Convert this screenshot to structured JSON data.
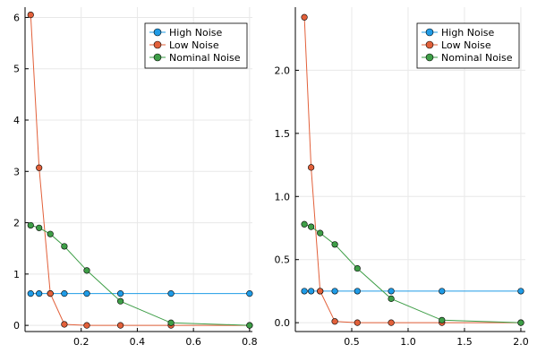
{
  "chart_data": [
    {
      "type": "line",
      "title": "",
      "xlabel": "",
      "ylabel": "",
      "xlim": [
        0.0,
        0.81
      ],
      "ylim": [
        -0.12,
        6.2
      ],
      "x_ticks": [
        0.2,
        0.4,
        0.6,
        0.8
      ],
      "x_tick_labels": [
        "0.2",
        "0.4",
        "0.6",
        "0.8"
      ],
      "y_ticks": [
        0,
        1,
        2,
        3,
        4,
        5,
        6
      ],
      "y_tick_labels": [
        "0",
        "1",
        "2",
        "3",
        "4",
        "5",
        "6"
      ],
      "grid": true,
      "legend_position": "top-right",
      "series": [
        {
          "name": "High Noise",
          "color": "#1f9be6",
          "x": [
            0.02,
            0.05,
            0.09,
            0.14,
            0.22,
            0.34,
            0.52,
            0.8
          ],
          "y": [
            0.62,
            0.62,
            0.62,
            0.62,
            0.62,
            0.62,
            0.62,
            0.62
          ]
        },
        {
          "name": "Low Noise",
          "color": "#e2603a",
          "x": [
            0.02,
            0.05,
            0.09,
            0.14,
            0.22,
            0.34,
            0.52,
            0.8
          ],
          "y": [
            6.05,
            3.07,
            0.62,
            0.02,
            0.0,
            0.0,
            0.0,
            0.0
          ]
        },
        {
          "name": "Nominal Noise",
          "color": "#3e9e47",
          "x": [
            0.02,
            0.05,
            0.09,
            0.14,
            0.22,
            0.34,
            0.52,
            0.8
          ],
          "y": [
            1.95,
            1.9,
            1.78,
            1.54,
            1.07,
            0.47,
            0.05,
            0.0
          ]
        }
      ]
    },
    {
      "type": "line",
      "title": "",
      "xlabel": "",
      "ylabel": "",
      "xlim": [
        0.0,
        2.04
      ],
      "ylim": [
        -0.07,
        2.5
      ],
      "x_ticks": [
        0.5,
        1.0,
        1.5,
        2.0
      ],
      "x_tick_labels": [
        "0.5",
        "1.0",
        "1.5",
        "2.0"
      ],
      "y_ticks": [
        0.0,
        0.5,
        1.0,
        1.5,
        2.0
      ],
      "y_tick_labels": [
        "0.0",
        "0.5",
        "1.0",
        "1.5",
        "2.0"
      ],
      "grid": true,
      "legend_position": "top-right",
      "series": [
        {
          "name": "High Noise",
          "color": "#1f9be6",
          "x": [
            0.08,
            0.14,
            0.22,
            0.35,
            0.55,
            0.85,
            1.3,
            2.0
          ],
          "y": [
            0.25,
            0.25,
            0.25,
            0.25,
            0.25,
            0.25,
            0.25,
            0.25
          ]
        },
        {
          "name": "Low Noise",
          "color": "#e2603a",
          "x": [
            0.08,
            0.14,
            0.22,
            0.35,
            0.55,
            0.85,
            1.3,
            2.0
          ],
          "y": [
            2.42,
            1.23,
            0.25,
            0.01,
            0.0,
            0.0,
            0.0,
            0.0
          ]
        },
        {
          "name": "Nominal Noise",
          "color": "#3e9e47",
          "x": [
            0.08,
            0.14,
            0.22,
            0.35,
            0.55,
            0.85,
            1.3,
            2.0
          ],
          "y": [
            0.78,
            0.76,
            0.71,
            0.62,
            0.43,
            0.19,
            0.02,
            0.0
          ]
        }
      ]
    }
  ]
}
